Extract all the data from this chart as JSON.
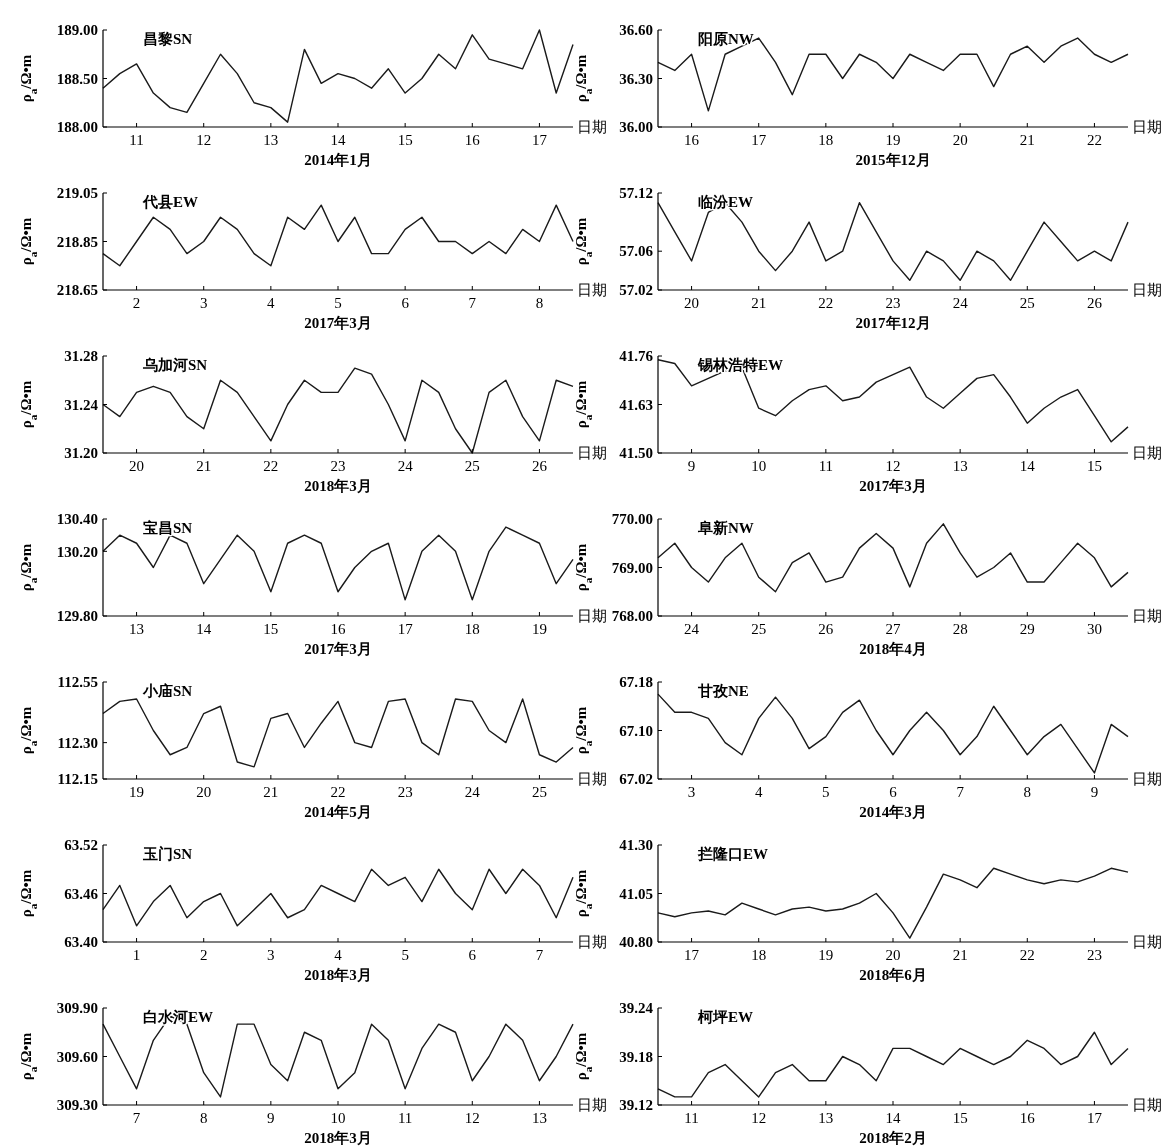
{
  "chart_data": [
    {
      "type": "line",
      "title": "昌黎SN",
      "xlabel": "2014年1月",
      "ylabel": "ρ$_{a}$/Ω•m",
      "annotations": [
        "日期"
      ],
      "xlim": [
        10.5,
        17.5
      ],
      "ylim": [
        188,
        189
      ],
      "xticks": [
        11,
        12,
        13,
        14,
        15,
        16,
        17
      ],
      "yticks": [
        {
          "value": 188,
          "label": "188.00"
        },
        {
          "value": 188.5,
          "label": "188.50"
        },
        {
          "value": 189,
          "label": "189.00"
        }
      ],
      "x": [
        10.5,
        10.75,
        11,
        11.25,
        11.5,
        11.75,
        12,
        12.25,
        12.5,
        12.75,
        13,
        13.25,
        13.5,
        13.75,
        14,
        14.25,
        14.5,
        14.75,
        15,
        15.25,
        15.5,
        15.75,
        16,
        16.25,
        16.5,
        16.75,
        17,
        17.25,
        17.5
      ],
      "series": [
        {
          "color": "#1a1a1a",
          "values": [
            188.4,
            188.55,
            188.65,
            188.35,
            188.2,
            188.15,
            188.45,
            188.75,
            188.55,
            188.25,
            188.2,
            188.05,
            188.8,
            188.45,
            188.55,
            188.5,
            188.4,
            188.6,
            188.35,
            188.5,
            188.75,
            188.6,
            188.95,
            188.7,
            188.65,
            188.6,
            189.0,
            188.35,
            188.85
          ]
        }
      ]
    },
    {
      "type": "line",
      "title": "阳原NW",
      "xlabel": "2015年12月",
      "ylabel": "ρ$_{a}$/Ω•m",
      "annotations": [
        "日期"
      ],
      "xlim": [
        15.5,
        22.5
      ],
      "ylim": [
        36,
        36.6
      ],
      "xticks": [
        16,
        17,
        18,
        19,
        20,
        21,
        22
      ],
      "yticks": [
        {
          "value": 36,
          "label": "36.00"
        },
        {
          "value": 36.3,
          "label": "36.30"
        },
        {
          "value": 36.6,
          "label": "36.60"
        }
      ],
      "x": [
        15.5,
        15.75,
        16,
        16.25,
        16.5,
        16.75,
        17,
        17.25,
        17.5,
        17.75,
        18,
        18.25,
        18.5,
        18.75,
        19,
        19.25,
        19.5,
        19.75,
        20,
        20.25,
        20.5,
        20.75,
        21,
        21.25,
        21.5,
        21.75,
        22,
        22.25,
        22.5
      ],
      "series": [
        {
          "color": "#1a1a1a",
          "values": [
            36.4,
            36.35,
            36.45,
            36.1,
            36.45,
            36.5,
            36.55,
            36.4,
            36.2,
            36.45,
            36.45,
            36.3,
            36.45,
            36.4,
            36.3,
            36.45,
            36.4,
            36.35,
            36.45,
            36.45,
            36.25,
            36.45,
            36.5,
            36.4,
            36.5,
            36.55,
            36.45,
            36.4,
            36.45
          ]
        }
      ]
    },
    {
      "type": "line",
      "title": "代县EW",
      "xlabel": "2017年3月",
      "ylabel": "ρ$_{a}$/Ω•m",
      "annotations": [
        "日期"
      ],
      "xlim": [
        1.5,
        8.5
      ],
      "ylim": [
        218.65,
        219.05
      ],
      "xticks": [
        2,
        3,
        4,
        5,
        6,
        7,
        8
      ],
      "yticks": [
        {
          "value": 218.65,
          "label": "218.65"
        },
        {
          "value": 218.85,
          "label": "218.85"
        },
        {
          "value": 219.05,
          "label": "219.05"
        }
      ],
      "x": [
        1.5,
        1.75,
        2,
        2.25,
        2.5,
        2.75,
        3,
        3.25,
        3.5,
        3.75,
        4,
        4.25,
        4.5,
        4.75,
        5,
        5.25,
        5.5,
        5.75,
        6,
        6.25,
        6.5,
        6.75,
        7,
        7.25,
        7.5,
        7.75,
        8,
        8.25,
        8.5
      ],
      "series": [
        {
          "color": "#1a1a1a",
          "values": [
            218.8,
            218.75,
            218.85,
            218.95,
            218.9,
            218.8,
            218.85,
            218.95,
            218.9,
            218.8,
            218.75,
            218.95,
            218.9,
            219.0,
            218.85,
            218.95,
            218.8,
            218.8,
            218.9,
            218.95,
            218.85,
            218.85,
            218.8,
            218.85,
            218.8,
            218.9,
            218.85,
            219.0,
            218.85
          ]
        }
      ]
    },
    {
      "type": "line",
      "title": "临汾EW",
      "xlabel": "2017年12月",
      "ylabel": "ρ$_{a}$/Ω•m",
      "annotations": [
        "日期"
      ],
      "xlim": [
        19.5,
        26.5
      ],
      "ylim": [
        57.02,
        57.12
      ],
      "xticks": [
        20,
        21,
        22,
        23,
        24,
        25,
        26
      ],
      "yticks": [
        {
          "value": 57.02,
          "label": "57.02"
        },
        {
          "value": 57.06,
          "label": "57.06"
        },
        {
          "value": 57.12,
          "label": "57.12"
        }
      ],
      "x": [
        19.5,
        19.75,
        20,
        20.25,
        20.5,
        20.75,
        21,
        21.25,
        21.5,
        21.75,
        22,
        22.25,
        22.5,
        22.75,
        23,
        23.25,
        23.5,
        23.75,
        24,
        24.25,
        24.5,
        24.75,
        25,
        25.25,
        25.5,
        25.75,
        26,
        26.25,
        26.5
      ],
      "series": [
        {
          "color": "#1a1a1a",
          "values": [
            57.11,
            57.08,
            57.05,
            57.1,
            57.11,
            57.09,
            57.06,
            57.04,
            57.06,
            57.09,
            57.05,
            57.06,
            57.11,
            57.08,
            57.05,
            57.03,
            57.06,
            57.05,
            57.03,
            57.06,
            57.05,
            57.03,
            57.06,
            57.09,
            57.07,
            57.05,
            57.06,
            57.05,
            57.09
          ]
        }
      ]
    },
    {
      "type": "line",
      "title": "乌加河SN",
      "xlabel": "2018年3月",
      "ylabel": "ρ$_{a}$/Ω•m",
      "annotations": [
        "日期"
      ],
      "xlim": [
        19.5,
        26.5
      ],
      "ylim": [
        31.2,
        31.28
      ],
      "xticks": [
        20,
        21,
        22,
        23,
        24,
        25,
        26
      ],
      "yticks": [
        {
          "value": 31.2,
          "label": "31.20"
        },
        {
          "value": 31.24,
          "label": "31.24"
        },
        {
          "value": 31.28,
          "label": "31.28"
        }
      ],
      "x": [
        19.5,
        19.75,
        20,
        20.25,
        20.5,
        20.75,
        21,
        21.25,
        21.5,
        21.75,
        22,
        22.25,
        22.5,
        22.75,
        23,
        23.25,
        23.5,
        23.75,
        24,
        24.25,
        24.5,
        24.75,
        25,
        25.25,
        25.5,
        25.75,
        26,
        26.25,
        26.5
      ],
      "series": [
        {
          "color": "#1a1a1a",
          "values": [
            31.24,
            31.23,
            31.25,
            31.255,
            31.25,
            31.23,
            31.22,
            31.26,
            31.25,
            31.23,
            31.21,
            31.24,
            31.26,
            31.25,
            31.25,
            31.27,
            31.265,
            31.24,
            31.21,
            31.26,
            31.25,
            31.22,
            31.2,
            31.25,
            31.26,
            31.23,
            31.21,
            31.26,
            31.255
          ]
        }
      ]
    },
    {
      "type": "line",
      "title": "锡林浩特EW",
      "xlabel": "2017年3月",
      "ylabel": "ρ$_{a}$/Ω•m",
      "annotations": [
        "日期"
      ],
      "xlim": [
        8.5,
        15.5
      ],
      "ylim": [
        41.5,
        41.76
      ],
      "xticks": [
        9,
        10,
        11,
        12,
        13,
        14,
        15
      ],
      "yticks": [
        {
          "value": 41.5,
          "label": "41.50"
        },
        {
          "value": 41.63,
          "label": "41.63"
        },
        {
          "value": 41.76,
          "label": "41.76"
        }
      ],
      "x": [
        8.5,
        8.75,
        9,
        9.25,
        9.5,
        9.75,
        10,
        10.25,
        10.5,
        10.75,
        11,
        11.25,
        11.5,
        11.75,
        12,
        12.25,
        12.5,
        12.75,
        13,
        13.25,
        13.5,
        13.75,
        14,
        14.25,
        14.5,
        14.75,
        15,
        15.25,
        15.5
      ],
      "series": [
        {
          "color": "#1a1a1a",
          "values": [
            41.75,
            41.74,
            41.68,
            41.7,
            41.72,
            41.73,
            41.62,
            41.6,
            41.64,
            41.67,
            41.68,
            41.64,
            41.65,
            41.69,
            41.71,
            41.73,
            41.65,
            41.62,
            41.66,
            41.7,
            41.71,
            41.65,
            41.58,
            41.62,
            41.65,
            41.67,
            41.6,
            41.53,
            41.57
          ]
        }
      ]
    },
    {
      "type": "line",
      "title": "宝昌SN",
      "xlabel": "2017年3月",
      "ylabel": "ρ$_{a}$/Ω•m",
      "annotations": [
        "日期"
      ],
      "xlim": [
        12.5,
        19.5
      ],
      "ylim": [
        129.8,
        130.4
      ],
      "xticks": [
        13,
        14,
        15,
        16,
        17,
        18,
        19
      ],
      "yticks": [
        {
          "value": 129.8,
          "label": "129.80"
        },
        {
          "value": 130.2,
          "label": "130.20"
        },
        {
          "value": 130.4,
          "label": "130.40"
        }
      ],
      "x": [
        12.5,
        12.75,
        13,
        13.25,
        13.5,
        13.75,
        14,
        14.25,
        14.5,
        14.75,
        15,
        15.25,
        15.5,
        15.75,
        16,
        16.25,
        16.5,
        16.75,
        17,
        17.25,
        17.5,
        17.75,
        18,
        18.25,
        18.5,
        18.75,
        19,
        19.25,
        19.5
      ],
      "series": [
        {
          "color": "#1a1a1a",
          "values": [
            130.2,
            130.3,
            130.25,
            130.1,
            130.3,
            130.25,
            130.0,
            130.15,
            130.3,
            130.2,
            129.95,
            130.25,
            130.3,
            130.25,
            129.95,
            130.1,
            130.2,
            130.25,
            129.9,
            130.2,
            130.3,
            130.2,
            129.9,
            130.2,
            130.35,
            130.3,
            130.25,
            130.0,
            130.15
          ]
        }
      ]
    },
    {
      "type": "line",
      "title": "阜新NW",
      "xlabel": "2018年4月",
      "ylabel": "ρ$_{a}$/Ω•m",
      "annotations": [
        "日期"
      ],
      "xlim": [
        23.5,
        30.5
      ],
      "ylim": [
        768,
        770
      ],
      "xticks": [
        24,
        25,
        26,
        27,
        28,
        29,
        30
      ],
      "yticks": [
        {
          "value": 768,
          "label": "768.00"
        },
        {
          "value": 769,
          "label": "769.00"
        },
        {
          "value": 770,
          "label": "770.00"
        }
      ],
      "x": [
        23.5,
        23.75,
        24,
        24.25,
        24.5,
        24.75,
        25,
        25.25,
        25.5,
        25.75,
        26,
        26.25,
        26.5,
        26.75,
        27,
        27.25,
        27.5,
        27.75,
        28,
        28.25,
        28.5,
        28.75,
        29,
        29.25,
        29.5,
        29.75,
        30,
        30.25,
        30.5
      ],
      "series": [
        {
          "color": "#1a1a1a",
          "values": [
            769.2,
            769.5,
            769.0,
            768.7,
            769.2,
            769.5,
            768.8,
            768.5,
            769.1,
            769.3,
            768.7,
            768.8,
            769.4,
            769.7,
            769.4,
            768.6,
            769.5,
            769.9,
            769.3,
            768.8,
            769.0,
            769.3,
            768.7,
            768.7,
            769.1,
            769.5,
            769.2,
            768.6,
            768.9
          ]
        }
      ]
    },
    {
      "type": "line",
      "title": "小庙SN",
      "xlabel": "2014年5月",
      "ylabel": "ρ$_{a}$/Ω•m",
      "annotations": [
        "日期"
      ],
      "xlim": [
        18.5,
        25.5
      ],
      "ylim": [
        112.15,
        112.55
      ],
      "xticks": [
        19,
        20,
        21,
        22,
        23,
        24,
        25
      ],
      "yticks": [
        {
          "value": 112.15,
          "label": "112.15"
        },
        {
          "value": 112.3,
          "label": "112.30"
        },
        {
          "value": 112.55,
          "label": "112.55"
        }
      ],
      "x": [
        18.5,
        18.75,
        19,
        19.25,
        19.5,
        19.75,
        20,
        20.25,
        20.5,
        20.75,
        21,
        21.25,
        21.5,
        21.75,
        22,
        22.25,
        22.5,
        22.75,
        23,
        23.25,
        23.5,
        23.75,
        24,
        24.25,
        24.5,
        24.75,
        25,
        25.25,
        25.5
      ],
      "series": [
        {
          "color": "#1a1a1a",
          "values": [
            112.42,
            112.47,
            112.48,
            112.35,
            112.25,
            112.28,
            112.42,
            112.45,
            112.22,
            112.2,
            112.4,
            112.42,
            112.28,
            112.38,
            112.47,
            112.3,
            112.28,
            112.47,
            112.48,
            112.3,
            112.25,
            112.48,
            112.47,
            112.35,
            112.3,
            112.48,
            112.25,
            112.22,
            112.28
          ]
        }
      ]
    },
    {
      "type": "line",
      "title": "甘孜NE",
      "xlabel": "2014年3月",
      "ylabel": "ρ$_{a}$/Ω•m",
      "annotations": [
        "日期"
      ],
      "xlim": [
        2.5,
        9.5
      ],
      "ylim": [
        67.02,
        67.18
      ],
      "xticks": [
        3,
        4,
        5,
        6,
        7,
        8,
        9
      ],
      "yticks": [
        {
          "value": 67.02,
          "label": "67.02"
        },
        {
          "value": 67.1,
          "label": "67.10"
        },
        {
          "value": 67.18,
          "label": "67.18"
        }
      ],
      "x": [
        2.5,
        2.75,
        3,
        3.25,
        3.5,
        3.75,
        4,
        4.25,
        4.5,
        4.75,
        5,
        5.25,
        5.5,
        5.75,
        6,
        6.25,
        6.5,
        6.75,
        7,
        7.25,
        7.5,
        7.75,
        8,
        8.25,
        8.5,
        8.75,
        9,
        9.25,
        9.5
      ],
      "series": [
        {
          "color": "#1a1a1a",
          "values": [
            67.16,
            67.13,
            67.13,
            67.12,
            67.08,
            67.06,
            67.12,
            67.155,
            67.12,
            67.07,
            67.09,
            67.13,
            67.15,
            67.1,
            67.06,
            67.1,
            67.13,
            67.1,
            67.06,
            67.09,
            67.14,
            67.1,
            67.06,
            67.09,
            67.11,
            67.07,
            67.03,
            67.11,
            67.09
          ]
        }
      ]
    },
    {
      "type": "line",
      "title": "玉门SN",
      "xlabel": "2018年3月",
      "ylabel": "ρ$_{a}$/Ω•m",
      "annotations": [
        "日期"
      ],
      "xlim": [
        0.5,
        7.5
      ],
      "ylim": [
        63.4,
        63.52
      ],
      "xticks": [
        1,
        2,
        3,
        4,
        5,
        6,
        7
      ],
      "yticks": [
        {
          "value": 63.4,
          "label": "63.40"
        },
        {
          "value": 63.46,
          "label": "63.46"
        },
        {
          "value": 63.52,
          "label": "63.52"
        }
      ],
      "x": [
        0.5,
        0.75,
        1,
        1.25,
        1.5,
        1.75,
        2,
        2.25,
        2.5,
        2.75,
        3,
        3.25,
        3.5,
        3.75,
        4,
        4.25,
        4.5,
        4.75,
        5,
        5.25,
        5.5,
        5.75,
        6,
        6.25,
        6.5,
        6.75,
        7,
        7.25,
        7.5
      ],
      "series": [
        {
          "color": "#1a1a1a",
          "values": [
            63.44,
            63.47,
            63.42,
            63.45,
            63.47,
            63.43,
            63.45,
            63.46,
            63.42,
            63.44,
            63.46,
            63.43,
            63.44,
            63.47,
            63.46,
            63.45,
            63.49,
            63.47,
            63.48,
            63.45,
            63.49,
            63.46,
            63.44,
            63.49,
            63.46,
            63.49,
            63.47,
            63.43,
            63.48
          ]
        }
      ]
    },
    {
      "type": "line",
      "title": "拦隆口EW",
      "xlabel": "2018年6月",
      "ylabel": "ρ$_{a}$/Ω•m",
      "annotations": [
        "日期"
      ],
      "xlim": [
        16.5,
        23.5
      ],
      "ylim": [
        40.8,
        41.3
      ],
      "xticks": [
        17,
        18,
        19,
        20,
        21,
        22,
        23
      ],
      "yticks": [
        {
          "value": 40.8,
          "label": "40.80"
        },
        {
          "value": 41.05,
          "label": "41.05"
        },
        {
          "value": 41.3,
          "label": "41.30"
        }
      ],
      "x": [
        16.5,
        16.75,
        17,
        17.25,
        17.5,
        17.75,
        18,
        18.25,
        18.5,
        18.75,
        19,
        19.25,
        19.5,
        19.75,
        20,
        20.25,
        20.5,
        20.75,
        21,
        21.25,
        21.5,
        21.75,
        22,
        22.25,
        22.5,
        22.75,
        23,
        23.25,
        23.5
      ],
      "series": [
        {
          "color": "#1a1a1a",
          "values": [
            40.95,
            40.93,
            40.95,
            40.96,
            40.94,
            41.0,
            40.97,
            40.94,
            40.97,
            40.98,
            40.96,
            40.97,
            41.0,
            41.05,
            40.95,
            40.82,
            40.98,
            41.15,
            41.12,
            41.08,
            41.18,
            41.15,
            41.12,
            41.1,
            41.12,
            41.11,
            41.14,
            41.18,
            41.16
          ]
        }
      ]
    },
    {
      "type": "line",
      "title": "白水河EW",
      "xlabel": "2018年3月",
      "ylabel": "ρ$_{a}$/Ω•m",
      "annotations": [
        "日期"
      ],
      "xlim": [
        6.5,
        13.5
      ],
      "ylim": [
        309.3,
        309.9
      ],
      "xticks": [
        7,
        8,
        9,
        10,
        11,
        12,
        13
      ],
      "yticks": [
        {
          "value": 309.3,
          "label": "309.30"
        },
        {
          "value": 309.6,
          "label": "309.60"
        },
        {
          "value": 309.9,
          "label": "309.90"
        }
      ],
      "x": [
        6.5,
        6.75,
        7,
        7.25,
        7.5,
        7.75,
        8,
        8.25,
        8.5,
        8.75,
        9,
        9.25,
        9.5,
        9.75,
        10,
        10.25,
        10.5,
        10.75,
        11,
        11.25,
        11.5,
        11.75,
        12,
        12.25,
        12.5,
        12.75,
        13,
        13.25,
        13.5
      ],
      "series": [
        {
          "color": "#1a1a1a",
          "values": [
            309.8,
            309.6,
            309.4,
            309.7,
            309.85,
            309.8,
            309.5,
            309.35,
            309.8,
            309.8,
            309.55,
            309.45,
            309.75,
            309.7,
            309.4,
            309.5,
            309.8,
            309.7,
            309.4,
            309.65,
            309.8,
            309.75,
            309.45,
            309.6,
            309.8,
            309.7,
            309.45,
            309.6,
            309.8
          ]
        }
      ]
    },
    {
      "type": "line",
      "title": "柯坪EW",
      "xlabel": "2018年2月",
      "ylabel": "ρ$_{a}$/Ω•m",
      "annotations": [
        "日期"
      ],
      "xlim": [
        10.5,
        17.5
      ],
      "ylim": [
        39.12,
        39.24
      ],
      "xticks": [
        11,
        12,
        13,
        14,
        15,
        16,
        17
      ],
      "yticks": [
        {
          "value": 39.12,
          "label": "39.12"
        },
        {
          "value": 39.18,
          "label": "39.18"
        },
        {
          "value": 39.24,
          "label": "39.24"
        }
      ],
      "x": [
        10.5,
        10.75,
        11,
        11.25,
        11.5,
        11.75,
        12,
        12.25,
        12.5,
        12.75,
        13,
        13.25,
        13.5,
        13.75,
        14,
        14.25,
        14.5,
        14.75,
        15,
        15.25,
        15.5,
        15.75,
        16,
        16.25,
        16.5,
        16.75,
        17,
        17.25,
        17.5
      ],
      "series": [
        {
          "color": "#1a1a1a",
          "values": [
            39.14,
            39.13,
            39.13,
            39.16,
            39.17,
            39.15,
            39.13,
            39.16,
            39.17,
            39.15,
            39.15,
            39.18,
            39.17,
            39.15,
            39.19,
            39.19,
            39.18,
            39.17,
            39.19,
            39.18,
            39.17,
            39.18,
            39.2,
            39.19,
            39.17,
            39.18,
            39.21,
            39.17,
            39.19
          ]
        }
      ]
    }
  ]
}
